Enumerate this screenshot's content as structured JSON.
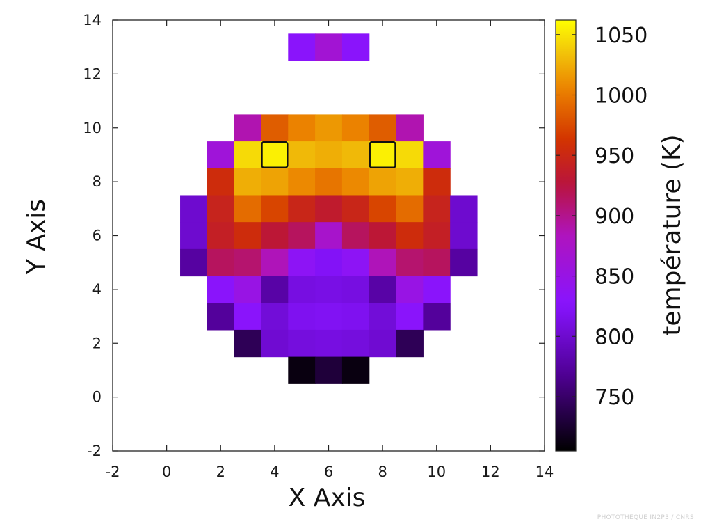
{
  "chart_data": {
    "type": "heatmap",
    "title": "",
    "xlabel": "X Axis",
    "ylabel": "Y Axis",
    "xlim": [
      -2,
      14
    ],
    "ylim": [
      -2,
      14
    ],
    "xticks": [
      -2,
      0,
      2,
      4,
      6,
      8,
      10,
      12,
      14
    ],
    "yticks": [
      -2,
      0,
      2,
      4,
      6,
      8,
      10,
      12,
      14
    ],
    "colorbar": {
      "label": "température (K)",
      "range": [
        705,
        1062
      ],
      "ticks": [
        750,
        800,
        850,
        900,
        950,
        1000,
        1050
      ],
      "colormap": "gnuplot-palette (black-purple-red-orange-yellow)"
    },
    "highlighted_cells": [
      [
        4,
        9
      ],
      [
        8,
        9
      ]
    ],
    "rows": [
      {
        "y": 13,
        "cells": [
          {
            "x": 5,
            "t": 830
          },
          {
            "x": 6,
            "t": 865
          },
          {
            "x": 7,
            "t": 830
          }
        ]
      },
      {
        "y": 10,
        "cells": [
          {
            "x": 3,
            "t": 888
          },
          {
            "x": 4,
            "t": 985
          },
          {
            "x": 5,
            "t": 1005
          },
          {
            "x": 6,
            "t": 1015
          },
          {
            "x": 7,
            "t": 1005
          },
          {
            "x": 8,
            "t": 985
          },
          {
            "x": 9,
            "t": 888
          }
        ]
      },
      {
        "y": 9,
        "cells": [
          {
            "x": 2,
            "t": 860
          },
          {
            "x": 3,
            "t": 1045
          },
          {
            "x": 4,
            "t": 1055
          },
          {
            "x": 5,
            "t": 1030
          },
          {
            "x": 6,
            "t": 1025
          },
          {
            "x": 7,
            "t": 1030
          },
          {
            "x": 8,
            "t": 1055
          },
          {
            "x": 9,
            "t": 1045
          },
          {
            "x": 10,
            "t": 860
          }
        ]
      },
      {
        "y": 8,
        "cells": [
          {
            "x": 2,
            "t": 955
          },
          {
            "x": 3,
            "t": 1025
          },
          {
            "x": 4,
            "t": 1020
          },
          {
            "x": 5,
            "t": 1008
          },
          {
            "x": 6,
            "t": 998
          },
          {
            "x": 7,
            "t": 1008
          },
          {
            "x": 8,
            "t": 1020
          },
          {
            "x": 9,
            "t": 1025
          },
          {
            "x": 10,
            "t": 955
          }
        ]
      },
      {
        "y": 7,
        "cells": [
          {
            "x": 1,
            "t": 800
          },
          {
            "x": 2,
            "t": 945
          },
          {
            "x": 3,
            "t": 993
          },
          {
            "x": 4,
            "t": 972
          },
          {
            "x": 5,
            "t": 948
          },
          {
            "x": 6,
            "t": 935
          },
          {
            "x": 7,
            "t": 948
          },
          {
            "x": 8,
            "t": 972
          },
          {
            "x": 9,
            "t": 993
          },
          {
            "x": 10,
            "t": 945
          },
          {
            "x": 11,
            "t": 800
          }
        ]
      },
      {
        "y": 6,
        "cells": [
          {
            "x": 1,
            "t": 800
          },
          {
            "x": 2,
            "t": 940
          },
          {
            "x": 3,
            "t": 955
          },
          {
            "x": 4,
            "t": 930
          },
          {
            "x": 5,
            "t": 915
          },
          {
            "x": 6,
            "t": 872
          },
          {
            "x": 7,
            "t": 915
          },
          {
            "x": 8,
            "t": 930
          },
          {
            "x": 9,
            "t": 955
          },
          {
            "x": 10,
            "t": 940
          },
          {
            "x": 11,
            "t": 800
          }
        ]
      },
      {
        "y": 5,
        "cells": [
          {
            "x": 1,
            "t": 775
          },
          {
            "x": 2,
            "t": 915
          },
          {
            "x": 3,
            "t": 910
          },
          {
            "x": 4,
            "t": 885
          },
          {
            "x": 5,
            "t": 835
          },
          {
            "x": 6,
            "t": 822
          },
          {
            "x": 7,
            "t": 835
          },
          {
            "x": 8,
            "t": 885
          },
          {
            "x": 9,
            "t": 910
          },
          {
            "x": 10,
            "t": 915
          },
          {
            "x": 11,
            "t": 775
          }
        ]
      },
      {
        "y": 4,
        "cells": [
          {
            "x": 2,
            "t": 830
          },
          {
            "x": 3,
            "t": 850
          },
          {
            "x": 4,
            "t": 778
          },
          {
            "x": 5,
            "t": 810
          },
          {
            "x": 6,
            "t": 812
          },
          {
            "x": 7,
            "t": 810
          },
          {
            "x": 8,
            "t": 778
          },
          {
            "x": 9,
            "t": 850
          },
          {
            "x": 10,
            "t": 830
          }
        ]
      },
      {
        "y": 3,
        "cells": [
          {
            "x": 2,
            "t": 772
          },
          {
            "x": 3,
            "t": 830
          },
          {
            "x": 4,
            "t": 805
          },
          {
            "x": 5,
            "t": 818
          },
          {
            "x": 6,
            "t": 820
          },
          {
            "x": 7,
            "t": 818
          },
          {
            "x": 8,
            "t": 805
          },
          {
            "x": 9,
            "t": 830
          },
          {
            "x": 10,
            "t": 772
          }
        ]
      },
      {
        "y": 2,
        "cells": [
          {
            "x": 3,
            "t": 742
          },
          {
            "x": 4,
            "t": 802
          },
          {
            "x": 5,
            "t": 808
          },
          {
            "x": 6,
            "t": 810
          },
          {
            "x": 7,
            "t": 808
          },
          {
            "x": 8,
            "t": 802
          },
          {
            "x": 9,
            "t": 742
          }
        ]
      },
      {
        "y": 1,
        "cells": [
          {
            "x": 5,
            "t": 712
          },
          {
            "x": 6,
            "t": 730
          },
          {
            "x": 7,
            "t": 712
          }
        ]
      }
    ]
  },
  "credit": "PHOTOTHÈQUE IN2P3 / CNRS"
}
